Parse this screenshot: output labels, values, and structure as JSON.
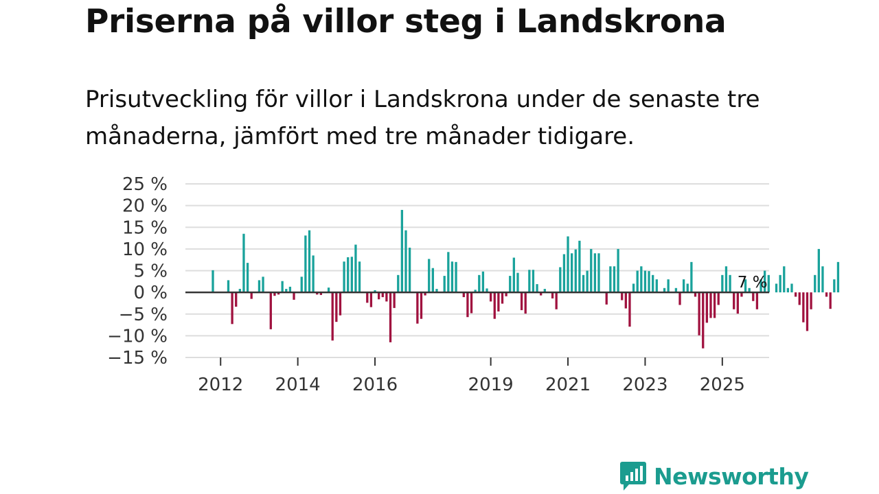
{
  "title": "Priserna på villor steg i Landskrona",
  "subtitle": "Prisutveckling för villor i Landskrona under de senaste tre månaderna, jämfört med tre månader tidigare.",
  "brand": {
    "name": "Newsworthy",
    "color": "#1b9c8f",
    "icon": "newsworthy-logo-icon"
  },
  "colors": {
    "positive": "#19a29b",
    "negative": "#a0123f",
    "zero_line": "#333333",
    "grid": "#dddddd"
  },
  "chart_data": {
    "type": "bar",
    "title": "Priserna på villor steg i Landskrona",
    "xlabel": "",
    "ylabel": "",
    "ylim": [
      -15,
      25
    ],
    "y_ticks": [
      -15,
      -10,
      -5,
      0,
      5,
      10,
      15,
      20,
      25
    ],
    "y_tick_labels": [
      "−15 %",
      "−10 %",
      "−5 %",
      "0 %",
      "5 %",
      "10 %",
      "15 %",
      "20 %",
      "25 %"
    ],
    "x_ticks": [
      {
        "label": "2012",
        "index": 2
      },
      {
        "label": "2014",
        "index": 22
      },
      {
        "label": "2016",
        "index": 42
      },
      {
        "label": "2019",
        "index": 72
      },
      {
        "label": "2021",
        "index": 92
      },
      {
        "label": "2023",
        "index": 112
      },
      {
        "label": "2025",
        "index": 132
      }
    ],
    "x_start": "2012-01",
    "x_end": "2025-10",
    "annotation": {
      "text": "7 %",
      "index": 140
    },
    "values": [
      5.1,
      0,
      0,
      0,
      2.8,
      -7.3,
      -3.3,
      0.8,
      13.5,
      6.8,
      -1.5,
      0,
      2.8,
      3.6,
      0,
      -8.5,
      -0.8,
      -0.5,
      2.6,
      0.8,
      1.3,
      -1.7,
      0,
      3.6,
      13.1,
      14.3,
      8.5,
      -0.5,
      -0.6,
      0,
      1.1,
      -11.1,
      -6.8,
      -5.3,
      7.1,
      8.1,
      8.2,
      11.0,
      7.1,
      0,
      -2.4,
      -3.4,
      0.5,
      -1.6,
      -1.1,
      -2.1,
      -11.5,
      -3.6,
      4.0,
      19.0,
      14.3,
      10.3,
      0,
      -7.2,
      -6.1,
      -0.7,
      7.7,
      5.6,
      0.8,
      0,
      3.8,
      9.3,
      7.1,
      7.0,
      0,
      -1.1,
      -5.7,
      -4.8,
      0.6,
      4.0,
      4.8,
      0.9,
      -2.1,
      -6.1,
      -4.4,
      -2.6,
      -0.9,
      3.8,
      8.0,
      4.5,
      -4.1,
      -4.9,
      5.2,
      5.2,
      1.9,
      -0.7,
      0.8,
      0,
      -1.4,
      -3.9,
      5.8,
      8.8,
      12.9,
      9.0,
      9.9,
      11.9,
      4.0,
      5.0,
      10.0,
      9.0,
      9.0,
      0,
      -2.8,
      6.0,
      6.0,
      10.0,
      -1.8,
      -3.7,
      -7.9,
      2.0,
      5.0,
      6.0,
      5.0,
      4.9,
      4.0,
      3.0,
      0,
      1.0,
      3.0,
      0,
      1.0,
      -2.9,
      3.0,
      2.0,
      7.0,
      -1.0,
      -9.9,
      -12.9,
      -7.0,
      -5.9,
      -5.9,
      -2.9,
      4.0,
      6.0,
      4.0,
      -3.9,
      -4.9,
      -1.0,
      3.0,
      1.0,
      -2.0,
      -3.9,
      3.0,
      5.0,
      4.0,
      0,
      2.0,
      4.0,
      6.0,
      1.0,
      2.0,
      -1.0,
      -2.9,
      -6.9,
      -8.9,
      -3.9,
      4.0,
      10.0,
      6.0,
      -1.0,
      -3.8,
      3.0,
      7.0
    ]
  }
}
